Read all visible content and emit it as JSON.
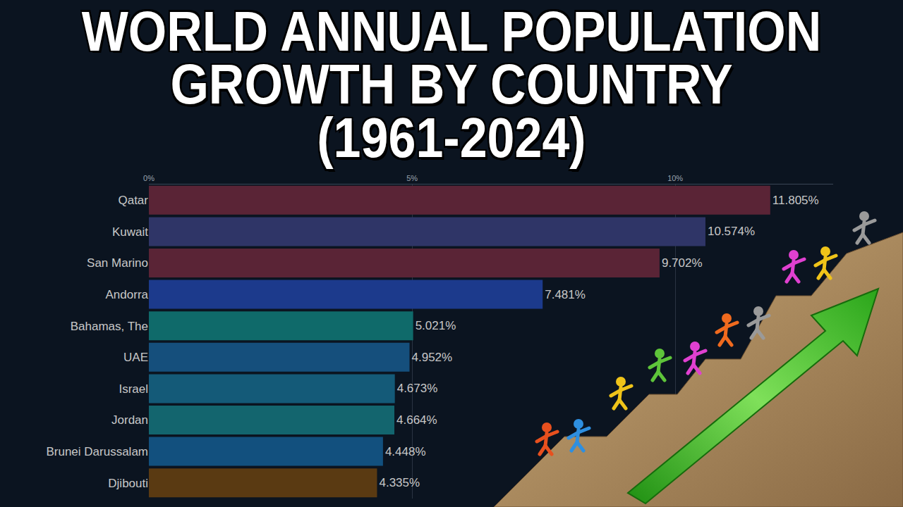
{
  "chart_data": {
    "type": "bar",
    "orientation": "horizontal",
    "title": "WORLD ANNUAL POPULATION GROWTH BY COUNTRY (1961-2024)",
    "categories": [
      "Qatar",
      "Kuwait",
      "San Marino",
      "Andorra",
      "Bahamas, The",
      "UAE",
      "Israel",
      "Jordan",
      "Brunei Darussalam",
      "Djibouti"
    ],
    "values": [
      11.805,
      10.574,
      9.702,
      7.481,
      5.021,
      4.952,
      4.673,
      4.664,
      4.448,
      4.335
    ],
    "value_labels": [
      "11.805%",
      "10.574%",
      "9.702%",
      "7.481%",
      "5.021%",
      "4.952%",
      "4.673%",
      "4.664%",
      "4.448%",
      "4.335%"
    ],
    "colors": [
      "#5a2436",
      "#2f3567",
      "#5a2436",
      "#1c3a8c",
      "#0f6a6a",
      "#154f7c",
      "#145a78",
      "#13656e",
      "#12507e",
      "#5a3a12"
    ],
    "xlim": [
      0,
      13
    ],
    "xticks": [
      {
        "value": 0,
        "label": "0%"
      },
      {
        "value": 5,
        "label": "5%"
      },
      {
        "value": 10,
        "label": "10%"
      }
    ],
    "grid": true,
    "data_labels": true
  }
}
